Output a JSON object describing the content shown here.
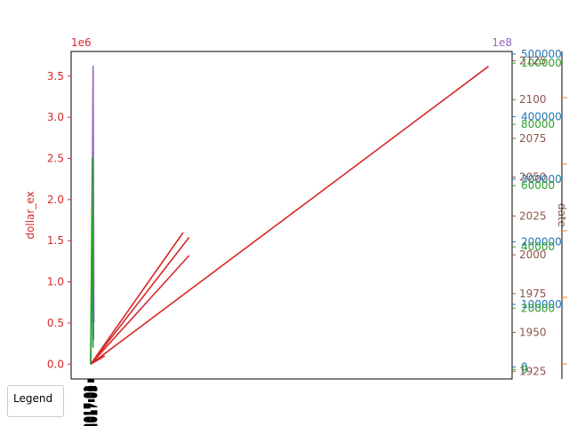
{
  "chart_data": {
    "type": "line",
    "legend": {
      "title": "Legend",
      "placement": "lower-left-outside"
    },
    "axes": {
      "left": {
        "label": "dollar_ex",
        "color": "#d62728",
        "offset_text": "1e6",
        "ticks": [
          "0.0",
          "0.5",
          "1.0",
          "1.5",
          "2.0",
          "2.5",
          "3.0",
          "3.5"
        ],
        "tick_values": [
          0,
          0.5,
          1.0,
          1.5,
          2.0,
          2.5,
          3.0,
          3.5
        ],
        "ylim": [
          -0.18,
          3.8
        ]
      },
      "right_purple": {
        "label": "",
        "color": "#9467bd",
        "offset_text": "1e8",
        "ticks": [],
        "tick_values": []
      },
      "right_blue": {
        "label": "",
        "color": "#1f77b4",
        "ticks": [
          "0",
          "100000",
          "200000",
          "300000",
          "400000",
          "500000"
        ],
        "tick_values": [
          0,
          100000,
          200000,
          300000,
          400000,
          500000
        ],
        "ylim": [
          -19000,
          504000
        ]
      },
      "right_green": {
        "label": "",
        "color": "#2ca02c",
        "ticks": [
          "0",
          "20000",
          "40000",
          "60000",
          "80000",
          "100000"
        ],
        "tick_values": [
          0,
          20000,
          40000,
          60000,
          80000,
          100000
        ],
        "ylim": [
          -3100,
          103800
        ]
      },
      "right_brown": {
        "label": "date",
        "color": "#8c564b",
        "ticks": [
          "1925",
          "1950",
          "1975",
          "2000",
          "2025",
          "2050",
          "2075",
          "2100",
          "2125"
        ],
        "tick_values": [
          1925,
          1950,
          1975,
          2000,
          2025,
          2050,
          2075,
          2100,
          2125
        ],
        "ylim": [
          1920,
          2131
        ]
      },
      "right_orange": {
        "label": "",
        "color": "#ff7f0e",
        "ticks": [],
        "tick_values": []
      }
    },
    "xlim": [
      0,
      100
    ],
    "series": [
      {
        "color": "#d62728",
        "x": [
          0,
          99
        ],
        "y": [
          0.0,
          3.62
        ]
      },
      {
        "color": "#d62728",
        "x": [
          0,
          23
        ],
        "y": [
          0.0,
          1.6
        ]
      },
      {
        "color": "#d62728",
        "x": [
          0,
          24.5
        ],
        "y": [
          0.0,
          1.54
        ]
      },
      {
        "color": "#d62728",
        "x": [
          0,
          24.5
        ],
        "y": [
          0.0,
          1.32
        ]
      },
      {
        "color": "#d62728",
        "x": [
          0,
          3.5
        ],
        "y": [
          0.0,
          0.1
        ]
      },
      {
        "color": "#9467bd",
        "x": [
          0,
          0.4,
          0.6,
          0.8
        ],
        "y": [
          0.0,
          2.0,
          3.62,
          0.5
        ]
      },
      {
        "color": "#1f77b4",
        "x": [
          0,
          0.5,
          0.7
        ],
        "y": [
          0.0,
          1.4,
          0.3
        ]
      },
      {
        "color": "#2ca02c",
        "x": [
          0,
          0.4,
          0.6
        ],
        "y": [
          0.0,
          2.5,
          0.2
        ]
      }
    ]
  }
}
